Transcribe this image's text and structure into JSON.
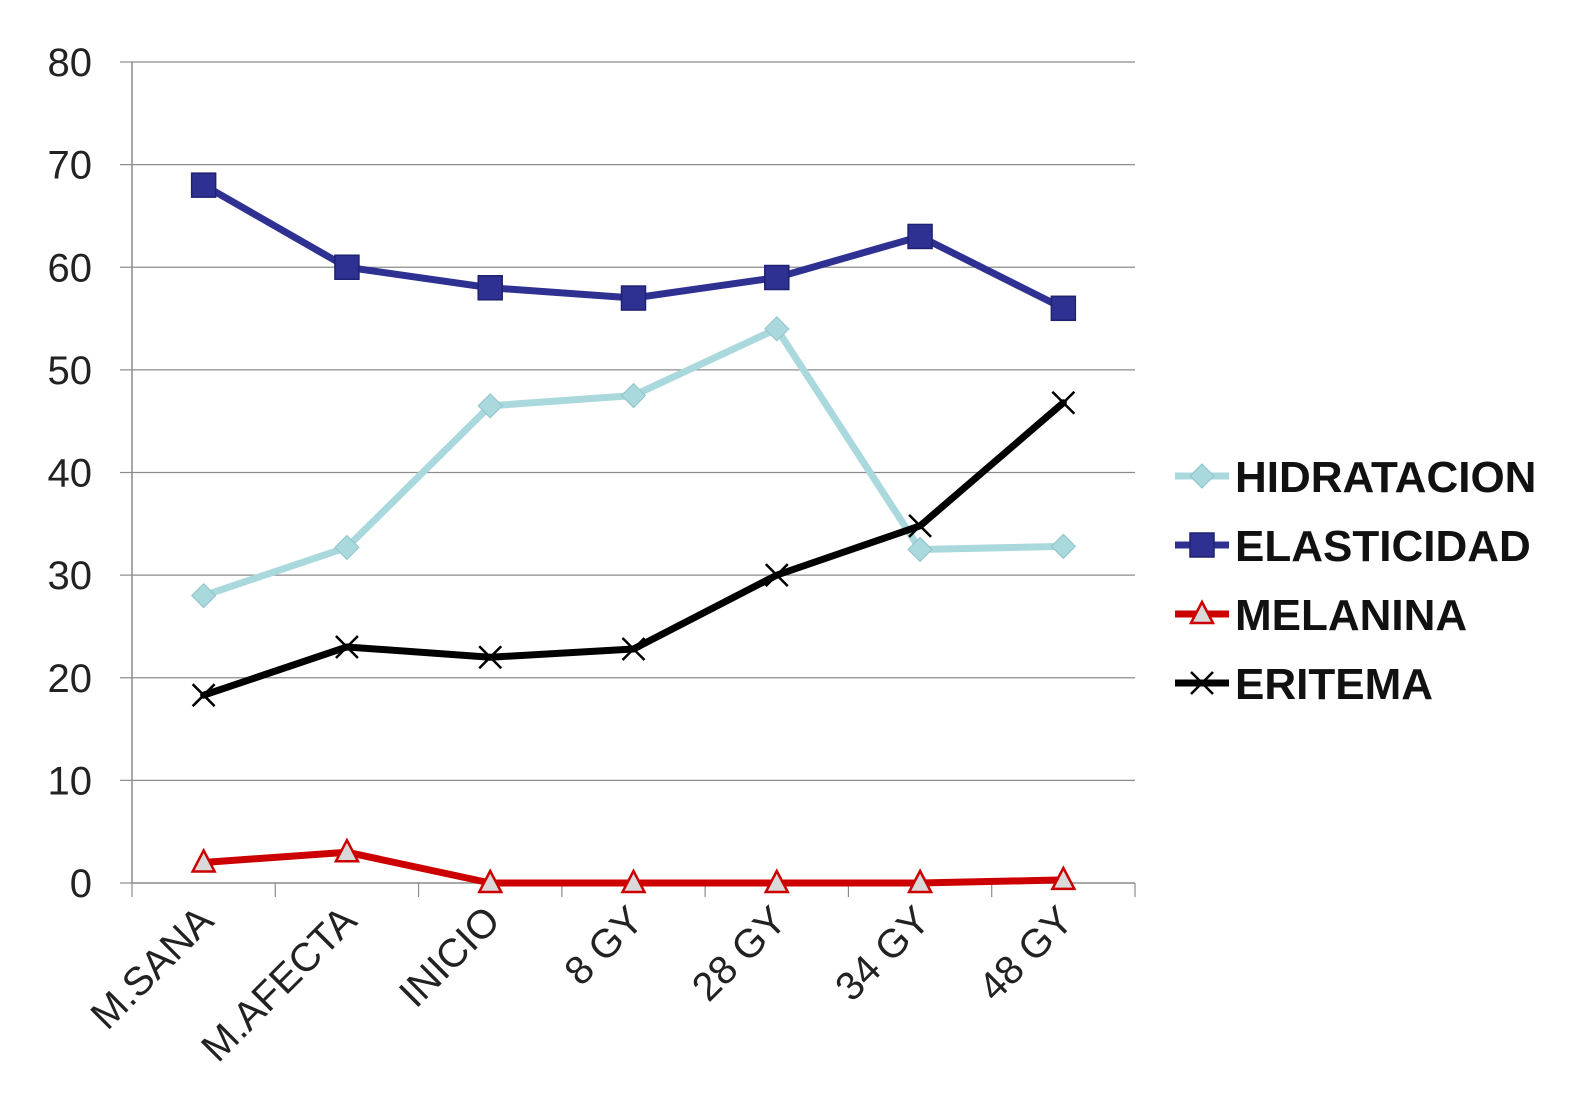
{
  "chart_data": {
    "type": "line",
    "title": "",
    "xlabel": "",
    "ylabel": "",
    "categories": [
      "M.SANA",
      "M.AFECTA",
      "INICIO",
      "8 GY",
      "28 GY",
      "34 GY",
      "48 GY"
    ],
    "ylim": [
      0,
      80
    ],
    "yticks": [
      0,
      10,
      20,
      30,
      40,
      50,
      60,
      70,
      80
    ],
    "grid": "horizontal",
    "legend_position": "right",
    "series": [
      {
        "name": "HIDRATACION",
        "color": "#a9d8dd",
        "marker": "diamond",
        "values": [
          28,
          32.7,
          46.5,
          47.5,
          54,
          32.5,
          32.8
        ]
      },
      {
        "name": "ELASTICIDAD",
        "color": "#2e3192",
        "marker": "square",
        "values": [
          68,
          60,
          58,
          57,
          59,
          63,
          56
        ]
      },
      {
        "name": "MELANINA",
        "color": "#cc0000",
        "marker": "triangle",
        "values": [
          2,
          3,
          0,
          0,
          0,
          0,
          0.3
        ]
      },
      {
        "name": "ERITEMA",
        "color": "#000000",
        "marker": "x",
        "values": [
          18.3,
          23,
          22,
          22.8,
          30,
          34.8,
          46.8
        ]
      }
    ]
  }
}
